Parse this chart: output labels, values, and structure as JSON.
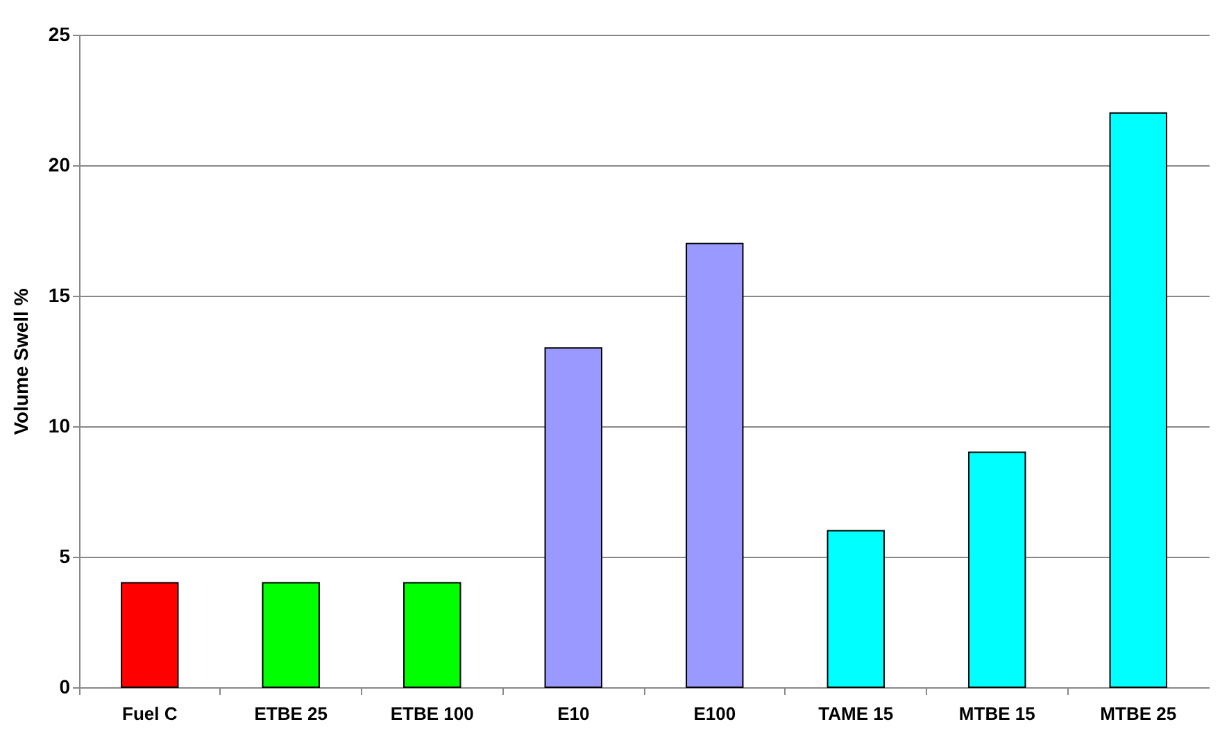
{
  "chart_data": {
    "type": "bar",
    "ylabel": "Volume Swell %",
    "categories": [
      "Fuel C",
      "ETBE 25",
      "ETBE 100",
      "E10",
      "E100",
      "TAME 15",
      "MTBE 15",
      "MTBE 25"
    ],
    "values": [
      4,
      4,
      4,
      13,
      17,
      6,
      9,
      22
    ],
    "colors": [
      "#ff0000",
      "#00ff00",
      "#00ff00",
      "#9999ff",
      "#9999ff",
      "#00ffff",
      "#00ffff",
      "#00ffff"
    ],
    "ylim": [
      0,
      25
    ],
    "yticks": [
      0,
      5,
      10,
      15,
      20,
      25
    ],
    "grid": "y",
    "legend": false
  }
}
